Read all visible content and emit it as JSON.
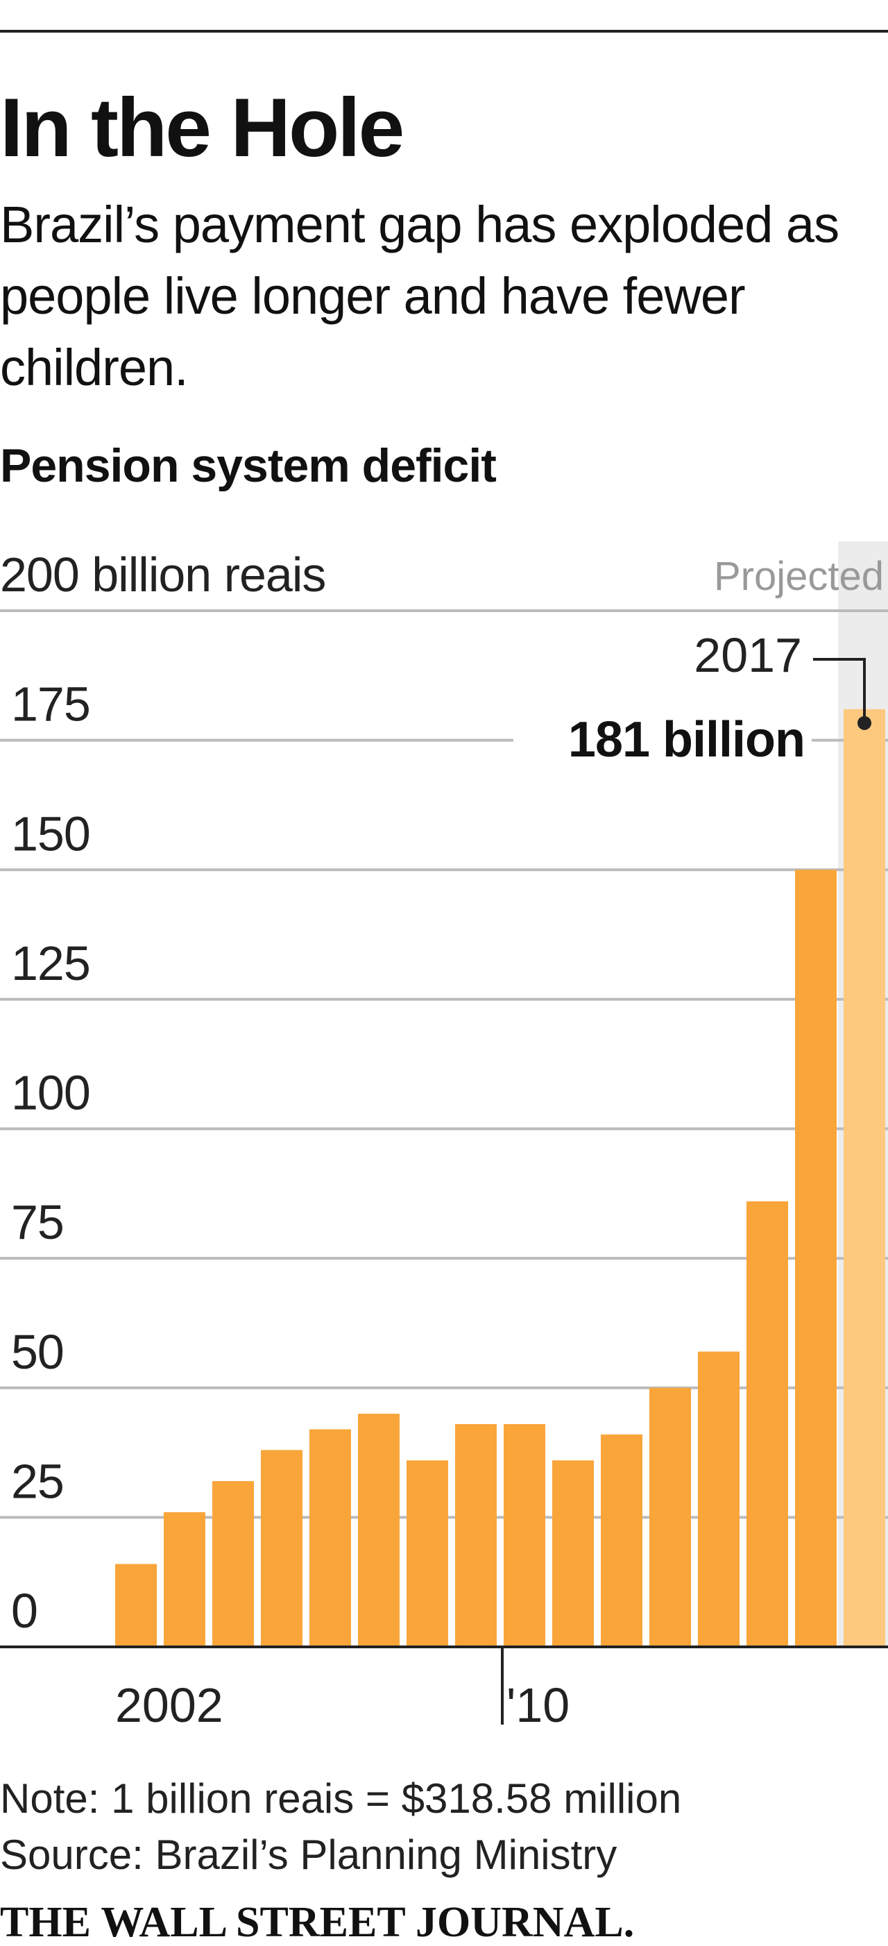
{
  "chart_data": {
    "type": "bar",
    "title": "In the Hole",
    "subtitle": "Brazil’s payment gap has exploded as people live longer and have fewer children.",
    "chart_title": "Pension system deficit",
    "categories": [
      "2002",
      null,
      null,
      null,
      null,
      null,
      null,
      null,
      "'10",
      null,
      null,
      null,
      null,
      null,
      null,
      null
    ],
    "values": [
      16,
      26,
      32,
      38,
      42,
      45,
      36,
      43,
      43,
      36,
      41,
      50,
      57,
      86,
      150,
      181
    ],
    "colors": [
      "#f9a53a",
      "#f9a53a",
      "#f9a53a",
      "#f9a53a",
      "#f9a53a",
      "#f9a53a",
      "#f9a53a",
      "#f9a53a",
      "#f9a53a",
      "#f9a53a",
      "#f9a53a",
      "#f9a53a",
      "#f9a53a",
      "#f9a53a",
      "#f9a53a",
      "#fdc97f"
    ],
    "projected_label": "Projected",
    "projected_band_color": "#ececec",
    "annotation": {
      "year": "2017",
      "label": "181 billion"
    },
    "ylim": [
      0,
      200
    ],
    "yticks": [
      0,
      25,
      50,
      75,
      100,
      125,
      150,
      175,
      {
        "value": 200,
        "label": "200 billion reais"
      }
    ],
    "grid": true,
    "note": "Note: 1 billion reais = $318.58 million",
    "source": "Source: Brazil’s Planning Ministry",
    "publisher": "THE WALL STREET JOURNAL."
  }
}
